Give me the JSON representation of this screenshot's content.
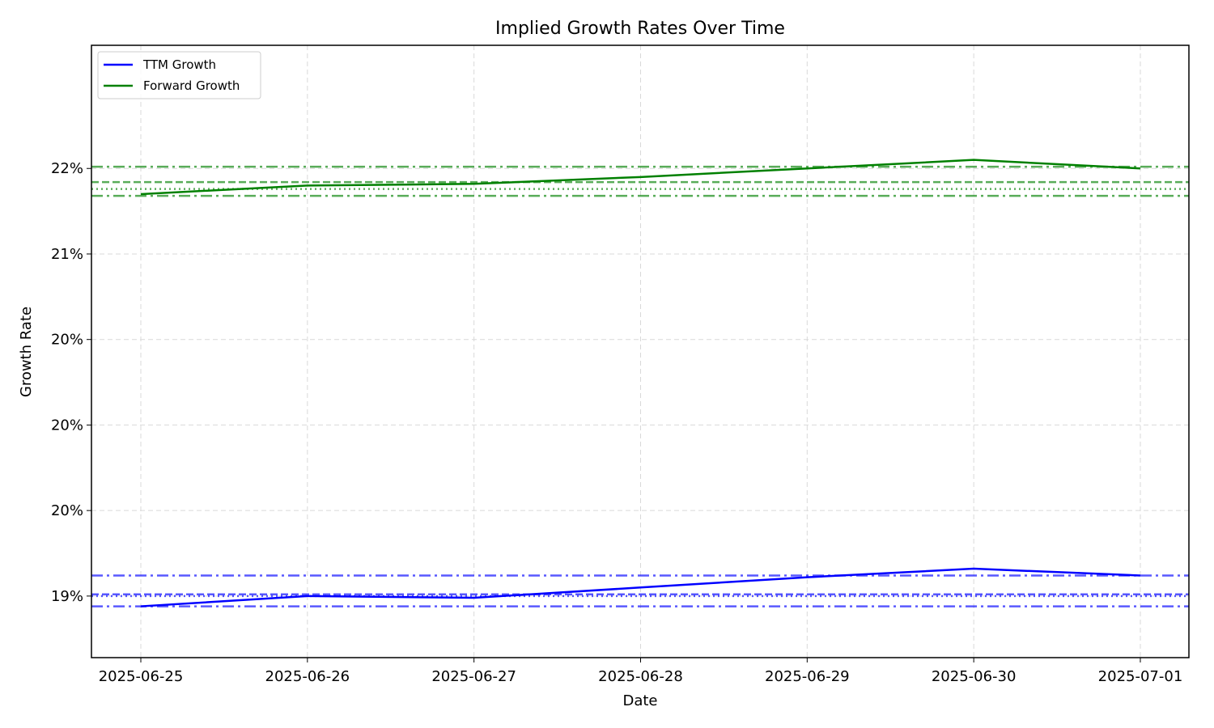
{
  "chart_data": {
    "type": "line",
    "title": "Implied Growth Rates Over Time",
    "xlabel": "Date",
    "ylabel": "Growth Rate",
    "x": [
      "2025-06-25",
      "2025-06-26",
      "2025-06-27",
      "2025-06-28",
      "2025-06-29",
      "2025-06-30",
      "2025-07-01"
    ],
    "ylim": [
      0.1864,
      0.2222
    ],
    "yticks": [
      {
        "value": 0.19,
        "label": "19%"
      },
      {
        "value": 0.195,
        "label": "20%"
      },
      {
        "value": 0.2,
        "label": "20%"
      },
      {
        "value": 0.205,
        "label": "20%"
      },
      {
        "value": 0.21,
        "label": "21%"
      },
      {
        "value": 0.215,
        "label": "22%"
      }
    ],
    "grid": true,
    "legend_position": "top-left",
    "series": [
      {
        "name": "TTM Growth",
        "color": "#0000ff",
        "values": [
          0.1894,
          0.19,
          0.1899,
          0.1905,
          0.1911,
          0.1916,
          0.1912
        ],
        "reference_lines": [
          {
            "value": 0.1912,
            "style": "dashdot"
          },
          {
            "value": 0.1901,
            "style": "dashed"
          },
          {
            "value": 0.19,
            "style": "dotted"
          },
          {
            "value": 0.1894,
            "style": "dashdot"
          }
        ]
      },
      {
        "name": "Forward Growth",
        "color": "#008000",
        "values": [
          0.2135,
          0.214,
          0.2141,
          0.2145,
          0.215,
          0.2155,
          0.215
        ],
        "reference_lines": [
          {
            "value": 0.2151,
            "style": "dashdot"
          },
          {
            "value": 0.2142,
            "style": "dashed"
          },
          {
            "value": 0.2138,
            "style": "dotted"
          },
          {
            "value": 0.2134,
            "style": "dashdot"
          }
        ]
      }
    ]
  }
}
